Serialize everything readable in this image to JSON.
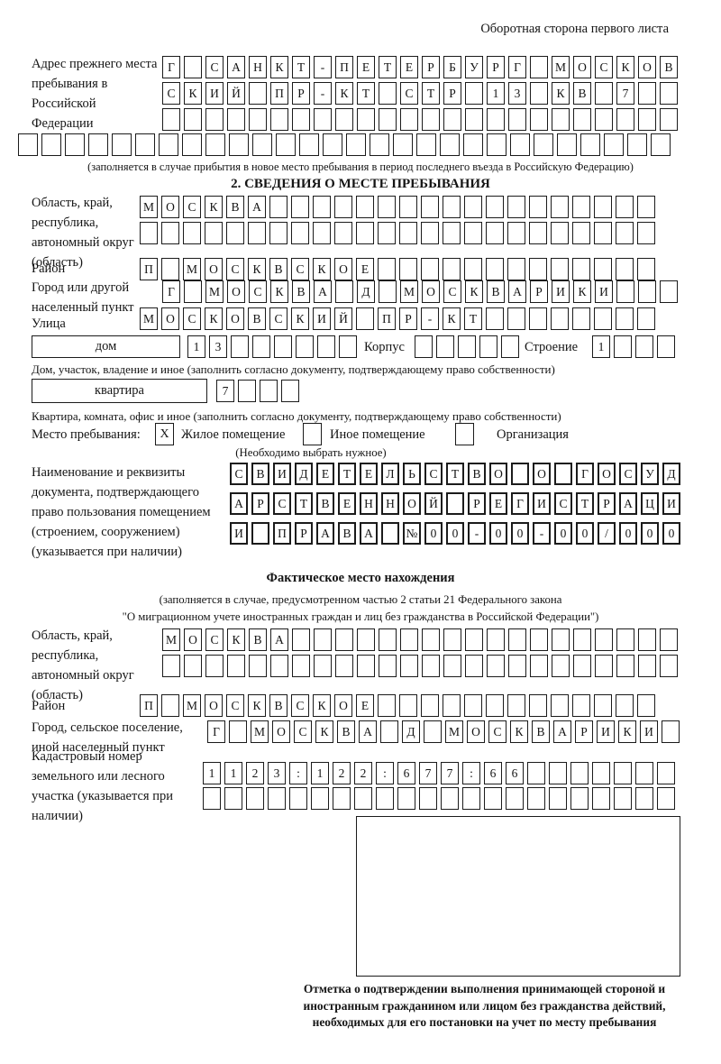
{
  "header": {
    "corner_note": "Оборотная сторона первого листа"
  },
  "prev_address": {
    "label": "Адрес прежнего места пребывания в Российской Федерации",
    "row1": [
      "Г",
      "",
      "С",
      "А",
      "Н",
      "К",
      "Т",
      "-",
      "П",
      "Е",
      "Т",
      "Е",
      "Р",
      "Б",
      "У",
      "Р",
      "Г",
      "",
      "М",
      "О",
      "С",
      "К",
      "О",
      "В"
    ],
    "row2": [
      "С",
      "К",
      "И",
      "Й",
      "",
      "П",
      "Р",
      "-",
      "К",
      "Т",
      "",
      "С",
      "Т",
      "Р",
      "",
      "1",
      "3",
      "",
      "К",
      "В",
      "",
      "7",
      "",
      ""
    ],
    "row3": [
      "",
      "",
      "",
      "",
      "",
      "",
      "",
      "",
      "",
      "",
      "",
      "",
      "",
      "",
      "",
      "",
      "",
      "",
      "",
      "",
      "",
      "",
      "",
      ""
    ],
    "row4": [
      "",
      "",
      "",
      "",
      "",
      "",
      "",
      "",
      "",
      "",
      "",
      "",
      "",
      "",
      "",
      "",
      "",
      "",
      "",
      "",
      "",
      "",
      "",
      "",
      "",
      "",
      "",
      ""
    ],
    "note": "(заполняется в случае прибытия в новое место пребывания в период последнего въезда в Российскую Федерацию)"
  },
  "section2": {
    "title": "2. СВЕДЕНИЯ О МЕСТЕ ПРЕБЫВАНИЯ",
    "region": {
      "label": "Область, край, республика, автономный округ (область)",
      "row1": [
        "М",
        "О",
        "С",
        "К",
        "В",
        "А",
        "",
        "",
        "",
        "",
        "",
        "",
        "",
        "",
        "",
        "",
        "",
        "",
        "",
        "",
        "",
        "",
        "",
        ""
      ],
      "row2": [
        "",
        "",
        "",
        "",
        "",
        "",
        "",
        "",
        "",
        "",
        "",
        "",
        "",
        "",
        "",
        "",
        "",
        "",
        "",
        "",
        "",
        "",
        "",
        ""
      ]
    },
    "district": {
      "label": "Район",
      "row": [
        "П",
        "",
        "М",
        "О",
        "С",
        "К",
        "В",
        "С",
        "К",
        "О",
        "Е",
        "",
        "",
        "",
        "",
        "",
        "",
        "",
        "",
        "",
        "",
        "",
        "",
        ""
      ]
    },
    "city": {
      "label": "Город или другой населенный пункт",
      "row": [
        "Г",
        "",
        "М",
        "О",
        "С",
        "К",
        "В",
        "А",
        "",
        "Д",
        "",
        "М",
        "О",
        "С",
        "К",
        "В",
        "А",
        "Р",
        "И",
        "К",
        "И",
        "",
        "",
        ""
      ]
    },
    "street": {
      "label": "Улица",
      "row": [
        "М",
        "О",
        "С",
        "К",
        "О",
        "В",
        "С",
        "К",
        "И",
        "Й",
        "",
        "П",
        "Р",
        "-",
        "К",
        "Т",
        "",
        "",
        "",
        "",
        "",
        "",
        "",
        ""
      ]
    },
    "house": {
      "box_label": "дом",
      "cells": [
        "1",
        "3",
        "",
        "",
        "",
        "",
        "",
        ""
      ],
      "korpus_label": "Корпус",
      "korpus_cells": [
        "",
        "",
        "",
        "",
        ""
      ],
      "stroenie_label": "Строение",
      "stroenie_cells": [
        "1",
        "",
        "",
        ""
      ]
    },
    "house_note": "Дом, участок, владение и иное (заполнить согласно документу, подтверждающему право собственности)",
    "apartment": {
      "box_label": "квартира",
      "cells": [
        "7",
        "",
        "",
        ""
      ]
    },
    "apartment_note": "Квартира, комната, офис и иное (заполнить согласно документу, подтверждающему право собственности)",
    "stay": {
      "label": "Место пребывания:",
      "options": [
        {
          "label": "Жилое помещение",
          "mark": "X"
        },
        {
          "label": "Иное помещение",
          "mark": ""
        },
        {
          "label": "Организация",
          "mark": ""
        }
      ],
      "note": "(Необходимо выбрать нужное)"
    },
    "document": {
      "label": "Наименование и реквизиты документа, подтверждающего право пользования помещением (строением, сооружением) (указывается при наличии)",
      "row1": [
        "С",
        "В",
        "И",
        "Д",
        "Е",
        "Т",
        "Е",
        "Л",
        "Ь",
        "С",
        "Т",
        "В",
        "О",
        "",
        "О",
        "",
        "Г",
        "О",
        "С",
        "У",
        "Д"
      ],
      "row2": [
        "А",
        "Р",
        "С",
        "Т",
        "В",
        "Е",
        "Н",
        "Н",
        "О",
        "Й",
        "",
        "Р",
        "Е",
        "Г",
        "И",
        "С",
        "Т",
        "Р",
        "А",
        "Ц",
        "И"
      ],
      "row3": [
        "И",
        "",
        "П",
        "Р",
        "А",
        "В",
        "А",
        "",
        "№",
        "0",
        "0",
        "-",
        "0",
        "0",
        "-",
        "0",
        "0",
        "/",
        "0",
        "0",
        "0"
      ]
    }
  },
  "actual_location": {
    "title": "Фактическое место нахождения",
    "note_line1": "(заполняется в случае, предусмотренном частью 2 статьи 21 Федерального закона",
    "note_line2": "\"О миграционном учете иностранных граждан и лиц без гражданства в Российской Федерации\")",
    "region": {
      "label": "Область, край, республика, автономный округ (область)",
      "row1": [
        "М",
        "О",
        "С",
        "К",
        "В",
        "А",
        "",
        "",
        "",
        "",
        "",
        "",
        "",
        "",
        "",
        "",
        "",
        "",
        "",
        "",
        "",
        "",
        "",
        ""
      ],
      "row2": [
        "",
        "",
        "",
        "",
        "",
        "",
        "",
        "",
        "",
        "",
        "",
        "",
        "",
        "",
        "",
        "",
        "",
        "",
        "",
        "",
        "",
        "",
        "",
        ""
      ]
    },
    "district": {
      "label": "Район",
      "row": [
        "П",
        "",
        "М",
        "О",
        "С",
        "К",
        "В",
        "С",
        "К",
        "О",
        "Е",
        "",
        "",
        "",
        "",
        "",
        "",
        "",
        "",
        "",
        "",
        "",
        "",
        ""
      ]
    },
    "city": {
      "label": "Город, сельское поселение, иной населенный пункт",
      "row": [
        "Г",
        "",
        "М",
        "О",
        "С",
        "К",
        "В",
        "А",
        "",
        "Д",
        "",
        "М",
        "О",
        "С",
        "К",
        "В",
        "А",
        "Р",
        "И",
        "К",
        "И",
        ""
      ]
    },
    "cadastral": {
      "label": "Кадастровый номер земельного или лесного участка (указывается при наличии)",
      "row1": [
        "1",
        "1",
        "2",
        "3",
        ":",
        "1",
        "2",
        "2",
        ":",
        "6",
        "7",
        "7",
        ":",
        "6",
        "6",
        "",
        "",
        "",
        "",
        "",
        "",
        ""
      ],
      "row2": [
        "",
        "",
        "",
        "",
        "",
        "",
        "",
        "",
        "",
        "",
        "",
        "",
        "",
        "",
        "",
        "",
        "",
        "",
        "",
        "",
        "",
        ""
      ]
    },
    "confirmation_note": "Отметка о подтверждении выполнения принимающей стороной и иностранным гражданином или лицом без гражданства действий, необходимых для его постановки на учет по месту пребывания"
  }
}
